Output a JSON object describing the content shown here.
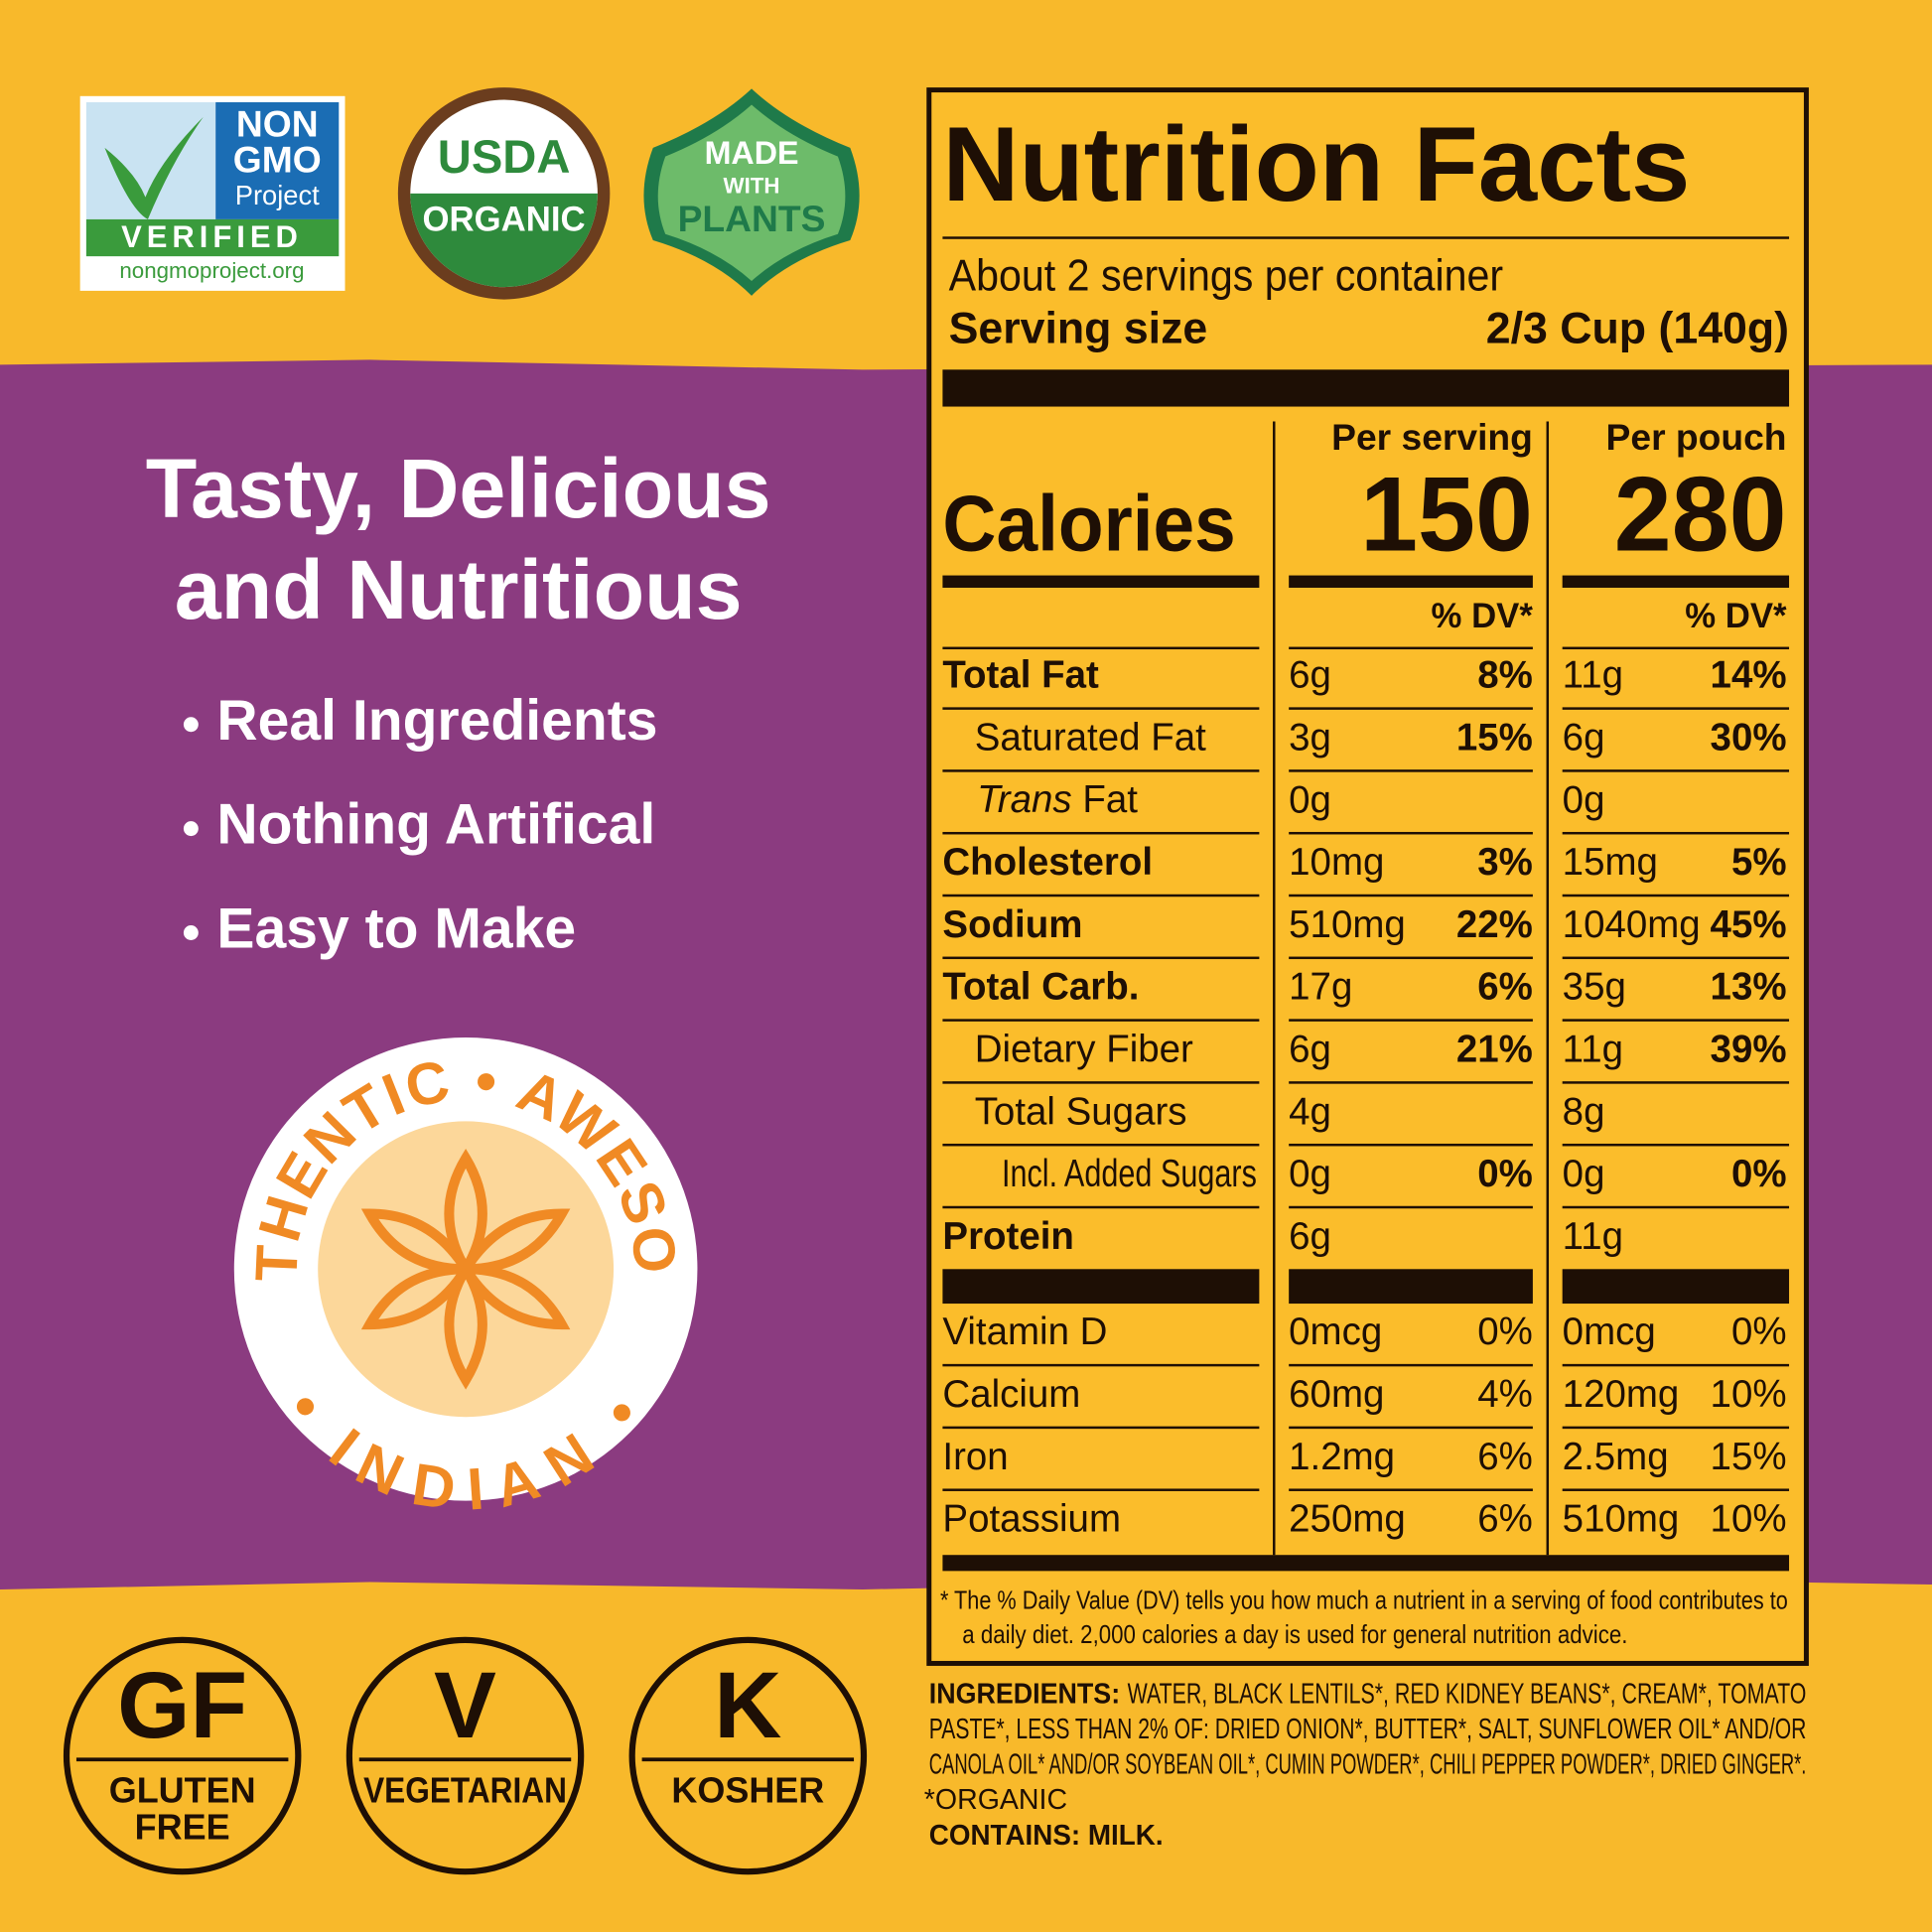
{
  "badges": {
    "non_gmo": [
      "NON",
      "GMO",
      "Project",
      "VERIFIED",
      "nongmoproject.org"
    ],
    "usda": [
      "USDA",
      "ORGANIC"
    ],
    "plants": [
      "MADE",
      "WITH",
      "PLANTS"
    ]
  },
  "headline": [
    "Tasty, Delicious",
    "and Nutritious"
  ],
  "bullets": [
    "Real Ingredients",
    "Nothing Artifical",
    "Easy to Make"
  ],
  "seal": {
    "top": "AUTHENTIC • AWESOME",
    "bottom": "• INDIAN •"
  },
  "nutrition": {
    "title": "Nutrition Facts",
    "servings": "About 2 servings per container",
    "serving_size_label": "Serving size",
    "serving_size": "2/3 Cup (140g)",
    "columns": [
      "Per serving",
      "Per pouch"
    ],
    "calories_label": "Calories",
    "calories": [
      150,
      280
    ],
    "dv_header": "% DV*",
    "rows": [
      [
        "Total Fat",
        "6g",
        "8%",
        "11g",
        "14%"
      ],
      [
        "Saturated Fat",
        "3g",
        "15%",
        "6g",
        "30%"
      ],
      [
        [
          "Trans",
          "Fat"
        ],
        "0g",
        null,
        "0g",
        null
      ],
      [
        "Cholesterol",
        "10mg",
        "3%",
        "15mg",
        "5%"
      ],
      [
        "Sodium",
        "510mg",
        "22%",
        "1040mg",
        "45%"
      ],
      [
        "Total Carb.",
        "17g",
        "6%",
        "35g",
        "13%"
      ],
      [
        "Dietary Fiber",
        "6g",
        "21%",
        "11g",
        "39%"
      ],
      [
        "Total Sugars",
        "4g",
        null,
        "8g",
        null
      ],
      [
        "Incl. Added Sugars",
        "0g",
        "0%",
        "0g",
        "0%"
      ],
      [
        "Protein",
        "6g",
        null,
        "11g",
        null
      ]
    ],
    "vitamins": [
      [
        "Vitamin D",
        "0mcg",
        "0%",
        "0mcg",
        "0%"
      ],
      [
        "Calcium",
        "60mg",
        "4%",
        "120mg",
        "10%"
      ],
      [
        "Iron",
        "1.2mg",
        "6%",
        "2.5mg",
        "15%"
      ],
      [
        "Potassium",
        "250mg",
        "6%",
        "510mg",
        "10%"
      ]
    ],
    "footnote": [
      "* The % Daily Value (DV) tells you how much a nutrient in a serving of food contributes to",
      "a daily diet. 2,000 calories a day is used for general nutrition advice."
    ]
  },
  "ingredients": {
    "label": "INGREDIENTS:",
    "lines": [
      "WATER, BLACK LENTILS*, RED KIDNEY BEANS*, CREAM*, TOMATO",
      "PASTE*, LESS THAN 2% OF: DRIED ONION*, BUTTER*, SALT, SUNFLOWER OIL* AND/OR",
      "CANOLA OIL* AND/OR SOYBEAN OIL*, CUMIN POWDER*, CHILI PEPPER POWDER*, DRIED GINGER*.",
      "*ORGANIC"
    ],
    "contains": "CONTAINS: MILK."
  },
  "diet_icons": [
    {
      "code": "GF",
      "label": [
        "GLUTEN",
        "FREE"
      ]
    },
    {
      "code": "V",
      "label": [
        "VEGETARIAN"
      ]
    },
    {
      "code": "K",
      "label": [
        "KOSHER"
      ]
    }
  ]
}
